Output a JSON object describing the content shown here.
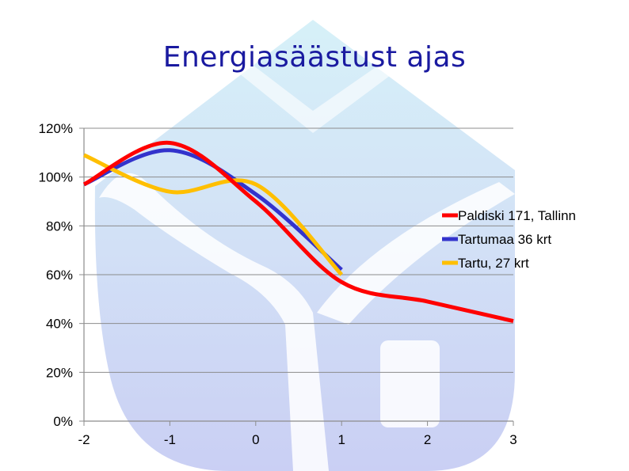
{
  "title": "Energiasäästust ajas",
  "chart_data": {
    "type": "line",
    "title": "Energiasäästust ajas",
    "xlabel": "",
    "ylabel": "",
    "xlim": [
      -2,
      3
    ],
    "ylim": [
      0,
      120
    ],
    "x_ticks": [
      -2,
      -1,
      0,
      1,
      2,
      3
    ],
    "x_tick_labels": [
      "-2",
      "-1",
      "0",
      "1",
      "2",
      "3"
    ],
    "y_ticks": [
      0,
      20,
      40,
      60,
      80,
      100,
      120
    ],
    "y_tick_labels": [
      "0%",
      "20%",
      "40%",
      "60%",
      "80%",
      "100%",
      "120%"
    ],
    "grid": "horizontal",
    "legend_position": "right",
    "series": [
      {
        "name": "Paldiski 171, Tallinn",
        "color": "#ff0000",
        "x": [
          -2,
          -1,
          0,
          1,
          2,
          3
        ],
        "values": [
          97,
          114,
          90,
          57,
          49,
          41
        ]
      },
      {
        "name": "Tartumaa 36 krt",
        "color": "#3333cc",
        "x": [
          -2,
          -1,
          0,
          1
        ],
        "values": [
          97,
          111,
          93,
          62
        ]
      },
      {
        "name": "Tartu, 27 krt",
        "color": "#ffbf00",
        "x": [
          -2,
          -1,
          0,
          1
        ],
        "values": [
          109,
          94,
          97,
          60
        ]
      }
    ]
  }
}
